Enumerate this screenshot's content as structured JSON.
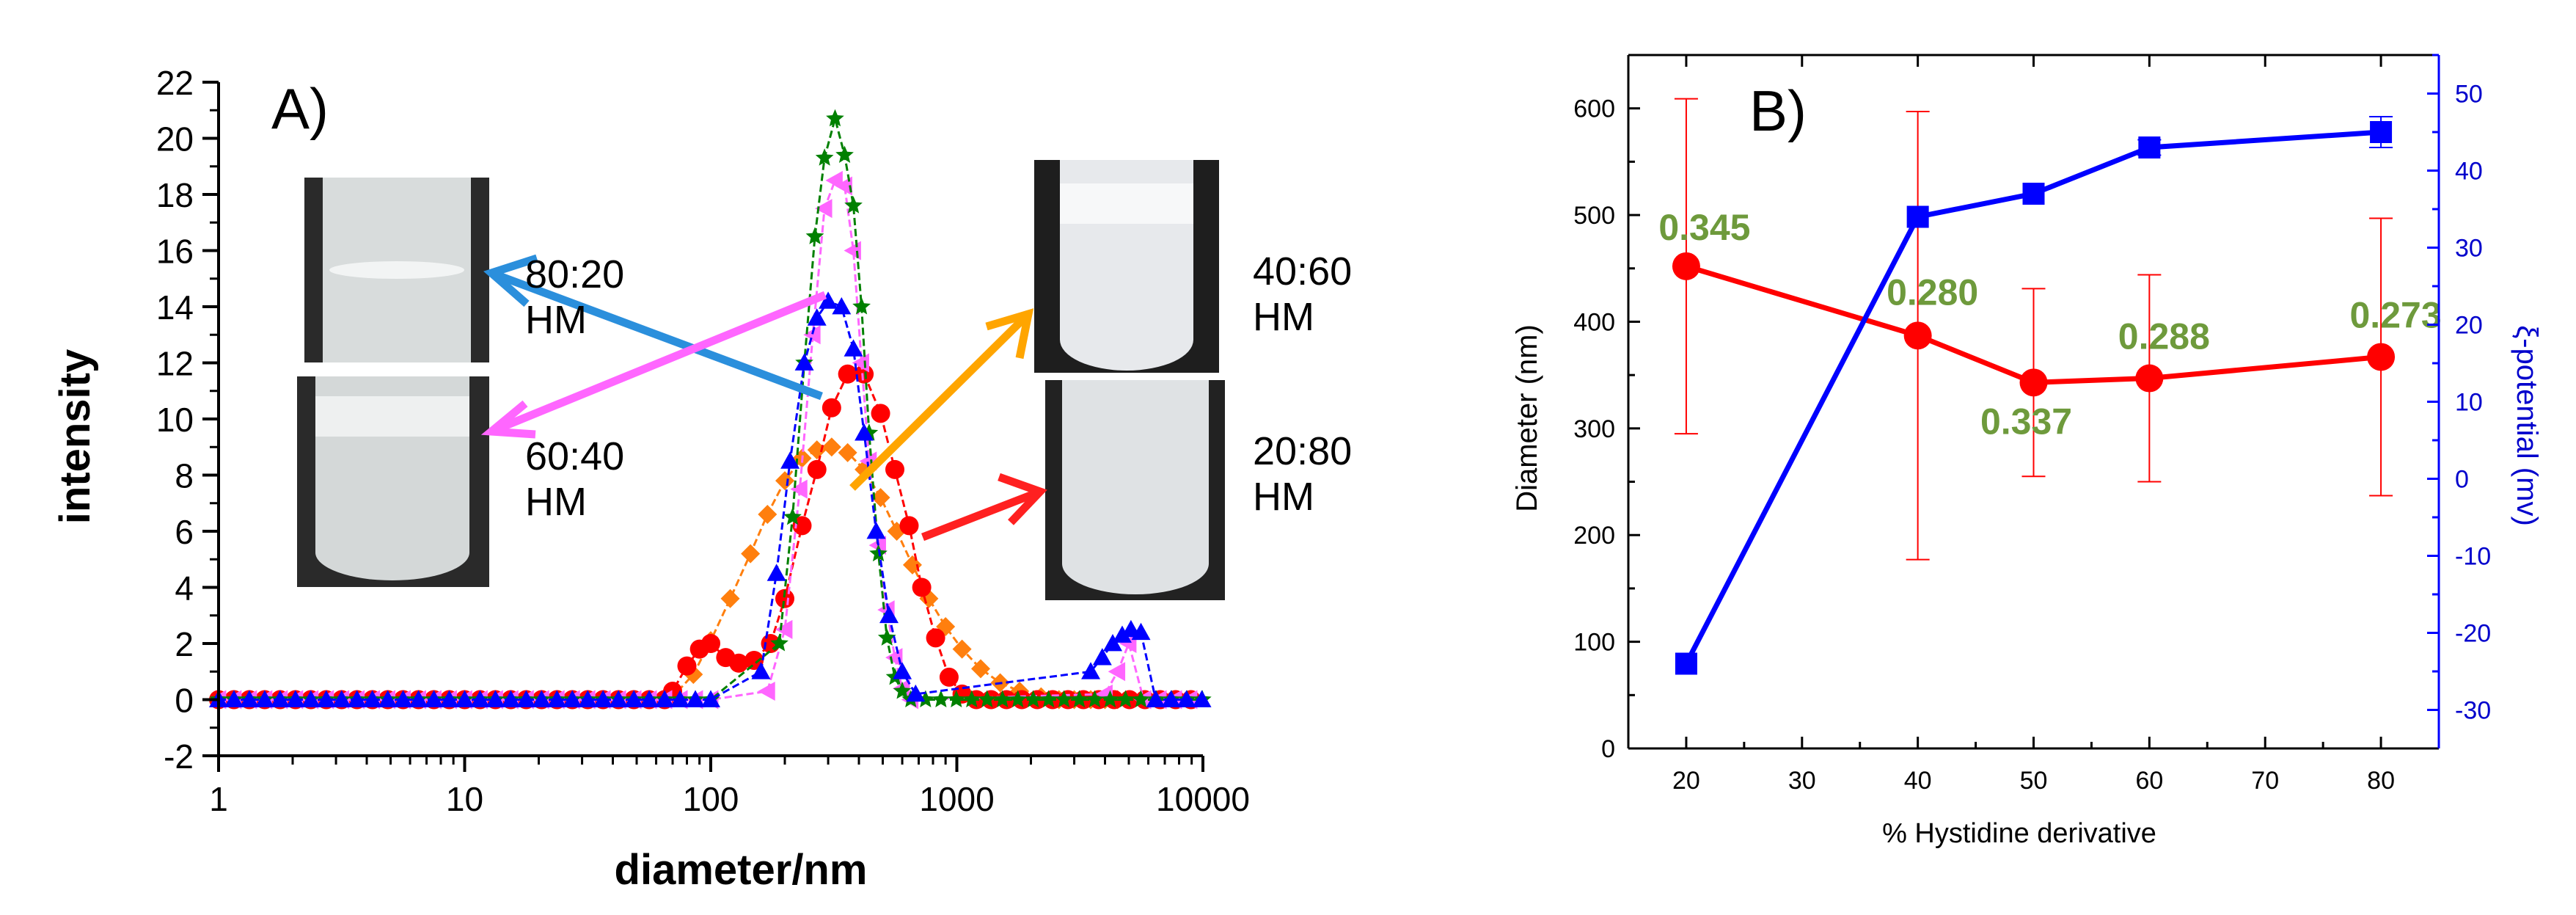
{
  "chart_data": [
    {
      "panel": "A)",
      "type": "line",
      "xscale": "log",
      "xlim": [
        1,
        10000
      ],
      "ylim": [
        -2,
        22
      ],
      "xlabel": "diameter/nm",
      "ylabel": "intensity",
      "xticks": [
        "1",
        "10",
        "100",
        "1000",
        "10000"
      ],
      "yticks": [
        "-2",
        "0",
        "2",
        "4",
        "6",
        "8",
        "10",
        "12",
        "14",
        "16",
        "18",
        "20",
        "22"
      ],
      "series": [
        {
          "color": "#ff7f0e",
          "marker": "diamond",
          "x": [
            70,
            85,
            100,
            120,
            145,
            170,
            200,
            235,
            270,
            310,
            360,
            420,
            490,
            570,
            660,
            770,
            900,
            1050,
            1250,
            1500,
            1800,
            2200,
            2600,
            3000,
            3500,
            4000,
            4500,
            5000
          ],
          "y": [
            0.1,
            0.9,
            2.1,
            3.6,
            5.2,
            6.6,
            7.8,
            8.6,
            8.9,
            9.0,
            8.8,
            8.2,
            7.2,
            6.0,
            4.8,
            3.6,
            2.6,
            1.8,
            1.1,
            0.6,
            0.3,
            0.1,
            0,
            0,
            0,
            0,
            0,
            0
          ]
        },
        {
          "color": "#ff0000",
          "marker": "circle",
          "x": [
            70,
            80,
            90,
            100,
            115,
            130,
            150,
            175,
            200,
            235,
            270,
            310,
            360,
            420,
            490,
            560,
            640,
            720,
            820,
            930,
            1050,
            1200
          ],
          "y": [
            0.3,
            1.2,
            1.8,
            2.0,
            1.5,
            1.3,
            1.4,
            2.0,
            3.6,
            6.2,
            8.2,
            10.4,
            11.6,
            11.6,
            10.2,
            8.2,
            6.2,
            4.0,
            2.2,
            0.8,
            0.2,
            0
          ]
        },
        {
          "color": "#ff66ff",
          "marker": "triangle-left",
          "x": [
            170,
            200,
            230,
            260,
            290,
            320,
            350,
            380,
            410,
            440,
            480,
            520,
            560,
            600,
            650,
            4000,
            4500,
            5000
          ],
          "y": [
            0.3,
            2.5,
            7.5,
            13.0,
            17.5,
            18.5,
            18.3,
            16.0,
            12.0,
            8.5,
            5.5,
            3.2,
            1.5,
            0.4,
            0,
            0.2,
            1.0,
            2.0
          ]
        },
        {
          "color": "#008000",
          "marker": "star",
          "x": [
            190,
            215,
            240,
            265,
            290,
            320,
            350,
            380,
            410,
            440,
            480,
            520,
            560,
            600,
            650
          ],
          "y": [
            2.0,
            6.5,
            12.0,
            16.5,
            19.3,
            20.7,
            19.4,
            17.6,
            14.0,
            9.5,
            5.2,
            2.2,
            0.8,
            0.3,
            0
          ]
        },
        {
          "color": "#0000ff",
          "marker": "triangle-up",
          "x": [
            160,
            185,
            210,
            240,
            270,
            300,
            340,
            380,
            420,
            470,
            530,
            600,
            680,
            3500,
            3900,
            4300,
            4700,
            5100,
            5600
          ],
          "y": [
            1.0,
            4.5,
            8.5,
            12.0,
            13.6,
            14.2,
            14.0,
            12.5,
            9.5,
            6.0,
            3.0,
            1.0,
            0.2,
            1.0,
            1.5,
            2.0,
            2.3,
            2.5,
            2.4
          ]
        }
      ],
      "annotations": [
        {
          "text": "80:20",
          "text2": "HM"
        },
        {
          "text": "60:40",
          "text2": "HM"
        },
        {
          "text": "40:60",
          "text2": "HM"
        },
        {
          "text": "20:80",
          "text2": "HM"
        }
      ]
    },
    {
      "panel": "B)",
      "type": "line",
      "xlim": [
        15,
        85
      ],
      "ylim_left": [
        0,
        650
      ],
      "ylim_right": [
        -35,
        55
      ],
      "xlabel": "% Hystidine derivative",
      "ylabel_left": "Diameter (nm)",
      "ylabel_right": "ξ-potential (mv)",
      "xticks": [
        "20",
        "30",
        "40",
        "50",
        "60",
        "70",
        "80"
      ],
      "yticks_left": [
        "0",
        "100",
        "200",
        "300",
        "400",
        "500",
        "600"
      ],
      "yticks_right": [
        "-30",
        "-20",
        "-10",
        "0",
        "10",
        "20",
        "30",
        "40",
        "50"
      ],
      "series": [
        {
          "axis": "left",
          "color": "#ff0000",
          "marker": "circle",
          "x": [
            20,
            40,
            50,
            60,
            80
          ],
          "y": [
            452,
            387,
            343,
            347,
            367
          ],
          "err": [
            157,
            210,
            88,
            97,
            130
          ]
        },
        {
          "axis": "right",
          "color": "#0000ff",
          "marker": "square",
          "x": [
            20,
            40,
            50,
            60,
            80
          ],
          "y": [
            -24,
            34,
            37,
            43,
            45
          ],
          "err": [
            0,
            0,
            0,
            1,
            2
          ]
        }
      ],
      "labels": [
        {
          "text": "0.345",
          "x": 20
        },
        {
          "text": "0.280",
          "x": 40
        },
        {
          "text": "0.337",
          "x": 50
        },
        {
          "text": "0.288",
          "x": 60
        },
        {
          "text": "0.273",
          "x": 80
        }
      ],
      "label_color": "#6e9a3c"
    }
  ]
}
